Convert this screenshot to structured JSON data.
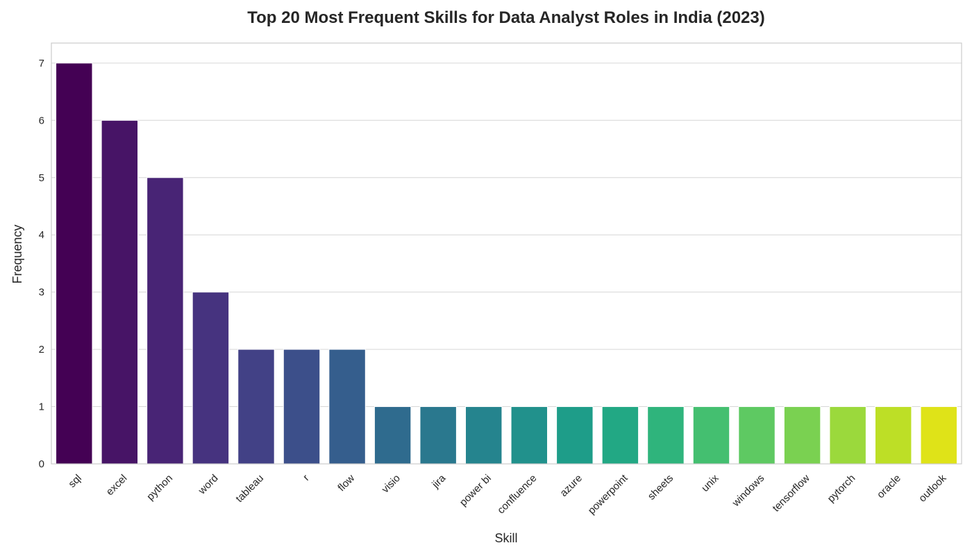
{
  "chart_data": {
    "type": "bar",
    "title": "Top 20 Most Frequent Skills for Data Analyst Roles in India (2023)",
    "xlabel": "Skill",
    "ylabel": "Frequency",
    "ylim": [
      0,
      7.35
    ],
    "yticks": [
      0,
      1,
      2,
      3,
      4,
      5,
      6,
      7
    ],
    "grid": true,
    "categories": [
      "sql",
      "excel",
      "python",
      "word",
      "tableau",
      "r",
      "flow",
      "visio",
      "jira",
      "power bi",
      "confluence",
      "azure",
      "powerpoint",
      "sheets",
      "unix",
      "windows",
      "tensorflow",
      "pytorch",
      "oracle",
      "outlook"
    ],
    "values": [
      7,
      6,
      5,
      3,
      2,
      2,
      2,
      1,
      1,
      1,
      1,
      1,
      1,
      1,
      1,
      1,
      1,
      1,
      1,
      1
    ],
    "colors": [
      "#440154",
      "#471466",
      "#482475",
      "#46337f",
      "#424186",
      "#3c4f8a",
      "#355e8d",
      "#2f6b8e",
      "#2a788e",
      "#25848e",
      "#21918c",
      "#1e9d89",
      "#22a884",
      "#2fb47c",
      "#44bf70",
      "#5ec962",
      "#7ad151",
      "#9bd93c",
      "#bddf26",
      "#dfe318"
    ]
  }
}
